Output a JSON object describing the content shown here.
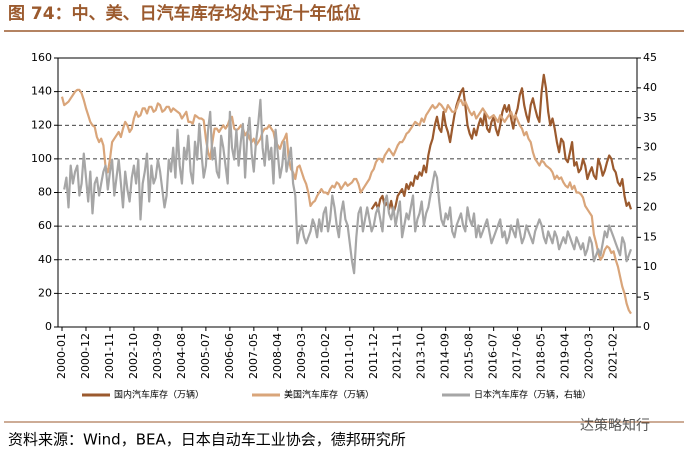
{
  "chart_data": {
    "type": "line",
    "title": "图 74：中、美、日汽车库存均处于近十年低位",
    "source": "资料来源：Wind，BEA，日本自动车工业协会，德邦研究所",
    "watermark": "达策略知行",
    "categories": [
      "2000-01",
      null,
      null,
      null,
      null,
      null,
      null,
      null,
      null,
      null,
      null,
      "2000-12",
      null,
      null,
      null,
      null,
      null,
      null,
      null,
      null,
      null,
      null,
      "2001-11",
      null,
      null,
      null,
      null,
      null,
      null,
      null,
      null,
      null,
      null,
      "2002-10",
      null,
      null,
      null,
      null,
      null,
      null,
      null,
      null,
      null,
      null,
      "2003-09",
      null,
      null,
      null,
      null,
      null,
      null,
      null,
      null,
      null,
      null,
      "2004-08",
      null,
      null,
      null,
      null,
      null,
      null,
      null,
      null,
      null,
      null,
      "2005-07",
      null,
      null,
      null,
      null,
      null,
      null,
      null,
      null,
      null,
      null,
      "2006-06",
      null,
      null,
      null,
      null,
      null,
      null,
      null,
      null,
      null,
      null,
      "2007-05",
      null,
      null,
      null,
      null,
      null,
      null,
      null,
      null,
      null,
      null,
      "2008-04",
      null,
      null,
      null,
      null,
      null,
      null,
      null,
      null,
      null,
      null,
      "2009-03",
      null,
      null,
      null,
      null,
      null,
      null,
      null,
      null,
      null,
      null,
      "2010-02",
      null,
      null,
      null,
      null,
      null,
      null,
      null,
      null,
      null,
      null,
      "2011-01",
      null,
      null,
      null,
      null,
      null,
      null,
      null,
      null,
      null,
      null,
      "2011-12",
      null,
      null,
      null,
      null,
      null,
      null,
      null,
      null,
      null,
      null,
      "2012-11",
      null,
      null,
      null,
      null,
      null,
      null,
      null,
      null,
      null,
      null,
      "2013-10",
      null,
      null,
      null,
      null,
      null,
      null,
      null,
      null,
      null,
      null,
      "2014-09",
      null,
      null,
      null,
      null,
      null,
      null,
      null,
      null,
      null,
      null,
      "2015-08",
      null,
      null,
      null,
      null,
      null,
      null,
      null,
      null,
      null,
      null,
      "2016-07",
      null,
      null,
      null,
      null,
      null,
      null,
      null,
      null,
      null,
      null,
      "2017-06",
      null,
      null,
      null,
      null,
      null,
      null,
      null,
      null,
      null,
      null,
      "2018-05",
      null,
      null,
      null,
      null,
      null,
      null,
      null,
      null,
      null,
      null,
      "2019-04",
      null,
      null,
      null,
      null,
      null,
      null,
      null,
      null,
      null,
      null,
      "2020-03",
      null,
      null,
      null,
      null,
      null,
      null,
      null,
      null,
      null,
      null,
      "2021-02",
      null,
      null,
      null,
      null,
      null,
      null,
      null,
      null
    ],
    "series": [
      {
        "name": "国内汽车库存（万辆）",
        "color": "#9b5a2e",
        "values": [
          null,
          null,
          null,
          null,
          null,
          null,
          null,
          null,
          null,
          null,
          null,
          null,
          null,
          null,
          null,
          null,
          null,
          null,
          null,
          null,
          null,
          null,
          null,
          null,
          null,
          null,
          null,
          null,
          null,
          null,
          null,
          null,
          null,
          null,
          null,
          null,
          null,
          null,
          null,
          null,
          null,
          null,
          null,
          null,
          null,
          null,
          null,
          null,
          null,
          null,
          null,
          null,
          null,
          null,
          null,
          null,
          null,
          null,
          null,
          null,
          null,
          null,
          null,
          null,
          null,
          null,
          null,
          null,
          null,
          null,
          null,
          null,
          null,
          null,
          null,
          null,
          null,
          null,
          null,
          null,
          null,
          null,
          null,
          null,
          null,
          null,
          null,
          null,
          null,
          null,
          null,
          null,
          null,
          null,
          null,
          null,
          null,
          null,
          null,
          null,
          null,
          null,
          null,
          null,
          null,
          null,
          null,
          null,
          null,
          null,
          null,
          null,
          null,
          null,
          null,
          null,
          null,
          null,
          null,
          null,
          null,
          null,
          null,
          null,
          null,
          null,
          null,
          null,
          null,
          null,
          null,
          null,
          null,
          null,
          null,
          null,
          null,
          null,
          null,
          null,
          null,
          null,
          70,
          72,
          74,
          70,
          76,
          78,
          72,
          74,
          70,
          75,
          68,
          72,
          78,
          80,
          82,
          78,
          85,
          82,
          86,
          84,
          90,
          88,
          92,
          90,
          96,
          92,
          102,
          108,
          112,
          120,
          125,
          118,
          116,
          128,
          120,
          116,
          110,
          118,
          126,
          132,
          136,
          140,
          142,
          132,
          120,
          115,
          112,
          118,
          114,
          120,
          124,
          120,
          128,
          118,
          116,
          122,
          125,
          118,
          114,
          120,
          128,
          132,
          128,
          132,
          124,
          118,
          126,
          130,
          138,
          142,
          132,
          126,
          122,
          132,
          136,
          130,
          125,
          122,
          140,
          150,
          142,
          128,
          120,
          124,
          118,
          110,
          104,
          112,
          110,
          100,
          98,
          104,
          110,
          96,
          98,
          92,
          94,
          100,
          96,
          88,
          92,
          95,
          90,
          88,
          100,
          96,
          90,
          93,
          98,
          102,
          100,
          94,
          92,
          86,
          84,
          88,
          78,
          72,
          74,
          70
        ]
      },
      {
        "name": "美国汽车库存（万辆）",
        "color": "#d9a57a",
        "values": [
          137,
          132,
          133,
          134,
          136,
          138,
          140,
          141,
          141,
          139,
          135,
          130,
          126,
          122,
          120,
          119,
          113,
          110,
          112,
          108,
          95,
          92,
          100,
          110,
          112,
          114,
          116,
          113,
          118,
          122,
          120,
          116,
          118,
          124,
          128,
          125,
          126,
          130,
          130,
          127,
          131,
          131,
          128,
          129,
          133,
          132,
          128,
          129,
          131,
          131,
          128,
          130,
          129,
          128,
          127,
          124,
          126,
          128,
          122,
          122,
          121,
          126,
          125,
          124,
          124,
          123,
          112,
          104,
          100,
          110,
          118,
          118,
          116,
          118,
          120,
          118,
          120,
          124,
          125,
          118,
          117,
          118,
          120,
          118,
          114,
          116,
          112,
          110,
          112,
          108,
          110,
          112,
          116,
          118,
          118,
          120,
          118,
          116,
          110,
          108,
          106,
          110,
          112,
          115,
          100,
          94,
          92,
          88,
          95,
          96,
          92,
          88,
          85,
          80,
          72,
          74,
          75,
          78,
          80,
          82,
          80,
          80,
          79,
          82,
          84,
          83,
          86,
          85,
          82,
          84,
          86,
          84,
          85,
          86,
          88,
          88,
          85,
          80,
          82,
          84,
          86,
          88,
          92,
          94,
          98,
          100,
          100,
          98,
          102,
          104,
          106,
          104,
          102,
          105,
          108,
          110,
          110,
          112,
          115,
          116,
          118,
          120,
          122,
          121,
          120,
          124,
          122,
          126,
          128,
          130,
          132,
          130,
          131,
          133,
          132,
          130,
          128,
          132,
          130,
          128,
          128,
          130,
          134,
          135,
          132,
          134,
          131,
          128,
          126,
          128,
          124,
          126,
          128,
          130,
          128,
          126,
          124,
          125,
          126,
          124,
          122,
          126,
          124,
          122,
          124,
          126,
          128,
          124,
          126,
          123,
          120,
          118,
          114,
          116,
          112,
          110,
          104,
          100,
          98,
          96,
          99,
          98,
          96,
          95,
          94,
          92,
          88,
          90,
          88,
          89,
          86,
          84,
          83,
          86,
          82,
          84,
          80,
          80,
          79,
          77,
          72,
          70,
          68,
          66,
          55,
          50,
          44,
          40,
          42,
          46,
          48,
          47,
          44,
          45,
          40,
          36,
          30,
          24,
          20,
          14,
          10,
          8
        ]
      },
      {
        "name": "日本汽车库存（万辆，右轴）",
        "color": "#a6a6a6",
        "axis": "y2",
        "values": [
          null,
          23,
          25,
          20,
          27,
          24,
          26,
          27,
          22,
          24,
          29,
          25,
          21,
          26,
          19,
          24,
          25,
          22,
          24,
          26,
          27,
          23,
          26,
          28,
          22,
          25,
          28,
          24,
          20,
          26,
          23,
          21,
          25,
          27,
          24,
          28,
          18,
          24,
          26,
          29,
          21,
          27,
          24,
          25,
          28,
          26,
          23,
          20,
          22,
          28,
          26,
          30,
          25,
          33,
          27,
          24,
          30,
          28,
          32,
          26,
          24,
          31,
          28,
          34,
          29,
          25,
          27,
          33,
          36,
          28,
          30,
          26,
          25,
          32,
          30,
          27,
          24,
          36,
          30,
          28,
          33,
          27,
          31,
          34,
          25,
          32,
          35,
          29,
          26,
          31,
          34,
          38,
          30,
          27,
          32,
          28,
          30,
          24,
          33,
          29,
          25,
          27,
          31,
          26,
          28,
          30,
          24,
          22,
          14,
          16,
          17,
          15,
          14,
          15,
          16,
          18,
          17,
          15,
          18,
          16,
          19,
          20,
          16,
          18,
          22,
          20,
          17,
          15,
          19,
          21,
          18,
          17,
          14,
          11,
          9,
          15,
          19,
          20,
          16,
          18,
          20,
          18,
          16,
          17,
          19,
          20,
          18,
          16,
          21,
          22,
          19,
          18,
          20,
          17,
          19,
          21,
          15,
          17,
          19,
          18,
          20,
          22,
          16,
          18,
          19,
          21,
          17,
          19,
          20,
          22,
          24,
          26,
          25,
          21,
          18,
          17,
          19,
          18,
          20,
          16,
          15,
          17,
          18,
          19,
          17,
          16,
          20,
          18,
          17,
          19,
          15,
          17,
          15,
          16,
          17,
          18,
          16,
          14,
          15,
          16,
          17,
          18,
          15,
          16,
          14,
          15,
          17,
          16,
          15,
          18,
          16,
          14,
          15,
          17,
          16,
          15,
          14,
          16,
          17,
          18,
          17,
          15,
          14,
          16,
          15,
          14,
          16,
          15,
          13,
          14,
          15,
          14,
          16,
          15,
          14,
          13,
          15,
          14,
          13,
          14,
          12,
          13,
          15,
          14,
          11,
          12,
          13,
          12,
          14,
          16,
          15,
          17,
          16,
          15,
          14,
          13,
          12,
          15,
          14,
          11,
          12,
          13
        ]
      }
    ],
    "ylim": [
      0,
      160
    ],
    "yticks": [
      0,
      20,
      40,
      60,
      80,
      100,
      120,
      140,
      160
    ],
    "y2lim": [
      0,
      45
    ],
    "y2ticks": [
      0,
      5,
      10,
      15,
      20,
      25,
      30,
      35,
      40,
      45
    ],
    "grid": true,
    "legend": "bottom"
  }
}
